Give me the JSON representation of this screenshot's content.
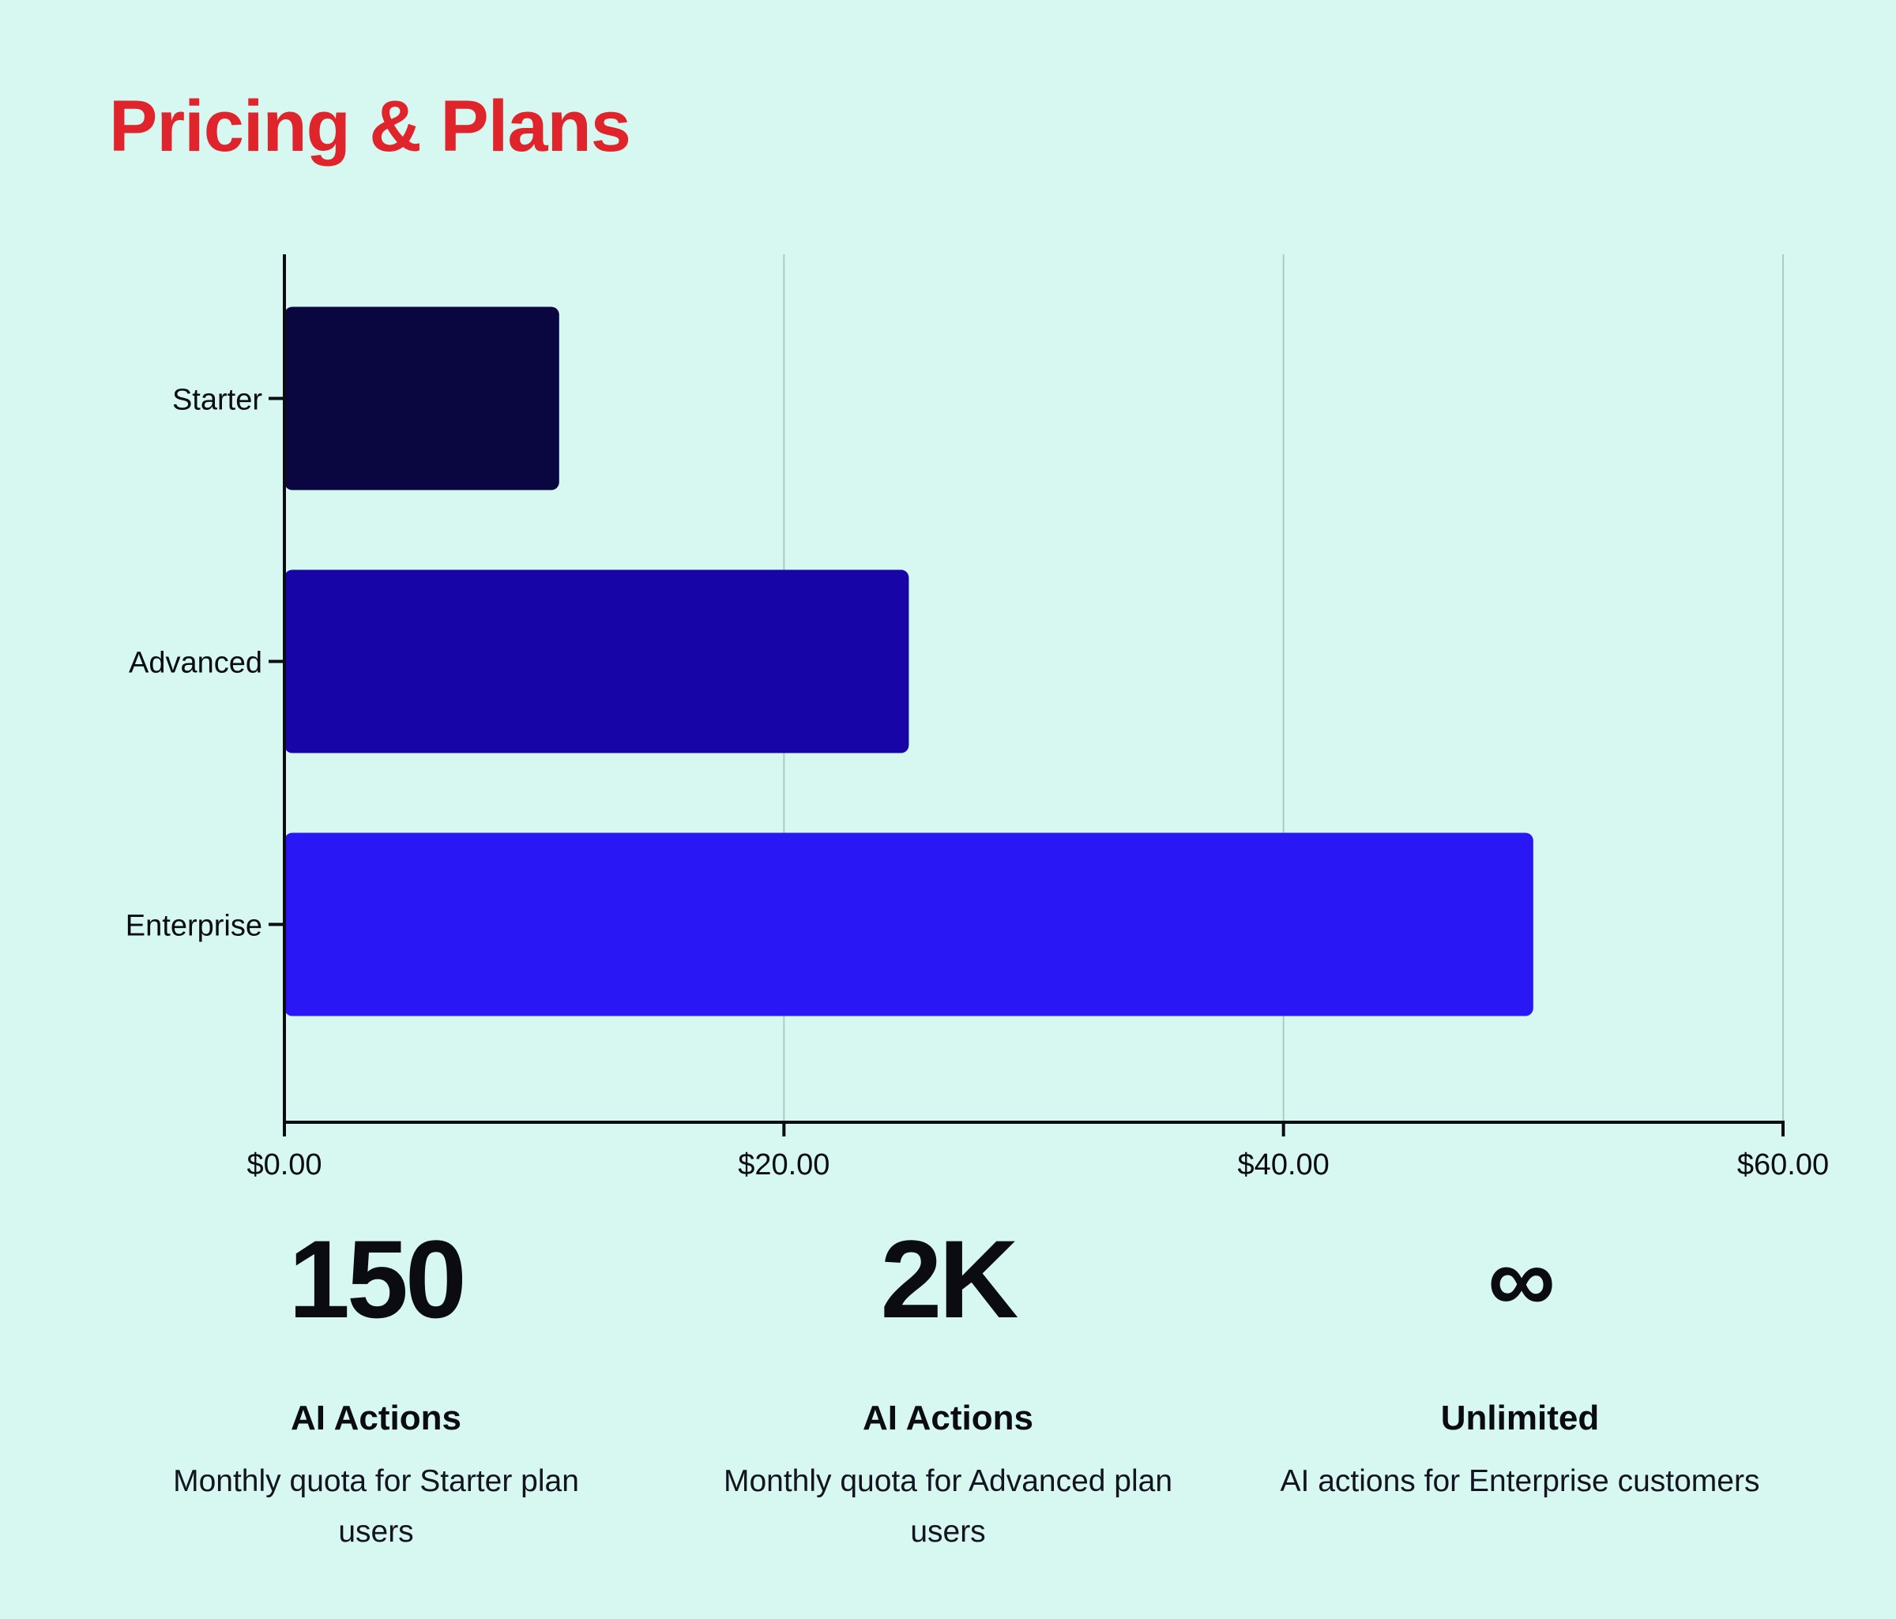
{
  "page": {
    "title": "Pricing & Plans"
  },
  "chart_data": {
    "type": "bar",
    "orientation": "horizontal",
    "title": "",
    "xlabel": "",
    "ylabel": "",
    "categories": [
      "Starter",
      "Advanced",
      "Enterprise"
    ],
    "values": [
      11,
      25,
      50
    ],
    "colors": [
      "#0a0640",
      "#1705a8",
      "#2a17f5"
    ],
    "xlim": [
      0,
      60
    ],
    "x_ticks": [
      0,
      20,
      40,
      60
    ],
    "x_tick_labels": [
      "$0.00",
      "$20.00",
      "$40.00",
      "$60.00"
    ],
    "grid": true,
    "legend": "none"
  },
  "stats": [
    {
      "value": "150",
      "title": "AI Actions",
      "description": "Monthly quota for Starter plan users"
    },
    {
      "value": "2K",
      "title": "AI Actions",
      "description": "Monthly quota for Advanced plan users"
    },
    {
      "value": "∞",
      "title": "Unlimited",
      "description": "AI actions for Enterprise customers"
    }
  ],
  "colors": {
    "background": "#d6f8f1",
    "title": "#e0242b",
    "gridline": "#a9cdc6",
    "axis": "#0b0b12"
  }
}
